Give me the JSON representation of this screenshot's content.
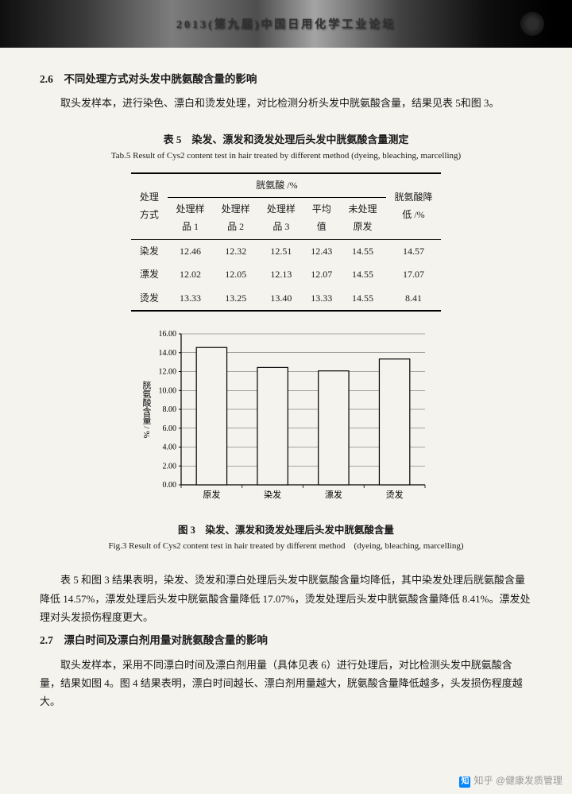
{
  "header": {
    "conference": "2013(第九届)中国日用化学工业论坛"
  },
  "section26": {
    "heading": "2.6　不同处理方式对头发中胱氨酸含量的影响",
    "para": "取头发样本，进行染色、漂白和烫发处理，对比检测分析头发中胱氨酸含量，结果见表 5和图 3。"
  },
  "table5": {
    "title": "表 5　染发、漂发和烫发处理后头发中胱氨酸含量测定",
    "subtitle": "Tab.5 Result of Cys2 content test in hair treated by different method (dyeing, bleaching, marcelling)",
    "col_group": "胱氨酸 /%",
    "headers": {
      "method": "处理方式",
      "s1": "处理样品 1",
      "s2": "处理样品 2",
      "s3": "处理样品 3",
      "avg": "平均值",
      "raw": "未处理原发",
      "reduce": "胱氨酸降低 /%"
    },
    "rows": [
      {
        "m": "染发",
        "s1": "12.46",
        "s2": "12.32",
        "s3": "12.51",
        "avg": "12.43",
        "raw": "14.55",
        "red": "14.57"
      },
      {
        "m": "漂发",
        "s1": "12.02",
        "s2": "12.05",
        "s3": "12.13",
        "avg": "12.07",
        "raw": "14.55",
        "red": "17.07"
      },
      {
        "m": "烫发",
        "s1": "13.33",
        "s2": "13.25",
        "s3": "13.40",
        "avg": "13.33",
        "raw": "14.55",
        "red": "8.41"
      }
    ]
  },
  "chart": {
    "type": "bar",
    "ylabel": "胱氨酸含量 / %",
    "categories": [
      "原发",
      "染发",
      "漂发",
      "烫发"
    ],
    "values": [
      14.55,
      12.43,
      12.07,
      13.33
    ],
    "ylim": [
      0,
      16
    ],
    "ytick_step": 2,
    "yticks": [
      "0.00",
      "2.00",
      "4.00",
      "6.00",
      "8.00",
      "10.00",
      "12.00",
      "14.00",
      "16.00"
    ],
    "bar_fill": "#f5f3ee",
    "bar_stroke": "#000000",
    "grid_color": "#555555",
    "bg": "#f5f3ee",
    "bar_width": 0.5,
    "tick_fontsize": 10,
    "label_fontsize": 11
  },
  "fig3": {
    "title": "图 3　染发、漂发和烫发处理后头发中胱氨酸含量",
    "subtitle": "Fig.3 Result of Cys2 content test in hair treated by different method　(dyeing, bleaching, marcelling)"
  },
  "para2": "表 5 和图 3 结果表明，染发、烫发和漂白处理后头发中胱氨酸含量均降低，其中染发处理后胱氨酸含量降低 14.57%，漂发处理后头发中胱氨酸含量降低 17.07%，烫发处理后头发中胱氨酸含量降低 8.41%。漂发处理对头发损伤程度更大。",
  "section27": {
    "heading": "2.7　漂白时间及漂白剂用量对胱氨酸含量的影响",
    "para": "取头发样本，采用不同漂白时间及漂白剂用量（具体见表 6）进行处理后，对比检测头发中胱氨酸含量，结果如图 4。图 4 结果表明，漂白时间越长、漂白剂用量越大，胱氨酸含量降低越多，头发损伤程度越大。"
  },
  "watermark": {
    "platform": "知乎",
    "author": "@健康发质管理"
  }
}
